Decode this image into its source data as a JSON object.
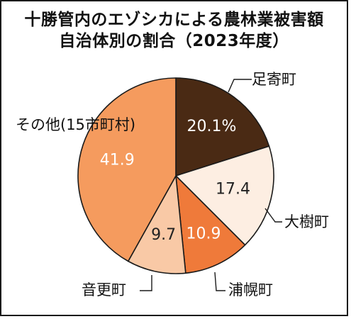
{
  "chart_data": {
    "type": "pie",
    "title_lines": [
      "十勝管内のエゾシカによる農林業被害額",
      "自治体別の割合（2023年度）"
    ],
    "start_angle_deg": 0,
    "direction": "clockwise",
    "slices": [
      {
        "label": "足寄町",
        "value": 20.1,
        "value_label": "20.1%",
        "color": "#4a2a14",
        "text_color": "#ffffff"
      },
      {
        "label": "大樹町",
        "value": 17.4,
        "value_label": "17.4",
        "color": "#fdeee2",
        "text_color": "#222222"
      },
      {
        "label": "浦幌町",
        "value": 10.9,
        "value_label": "10.9",
        "color": "#ef7a3a",
        "text_color": "#ffffff"
      },
      {
        "label": "音更町",
        "value": 9.7,
        "value_label": "9.7",
        "color": "#f9c9a6",
        "text_color": "#222222"
      },
      {
        "label": "その他(15市町村)",
        "value": 41.9,
        "value_label": "41.9",
        "color": "#f59b5e",
        "text_color": "#ffffff"
      }
    ],
    "legend": "none"
  }
}
